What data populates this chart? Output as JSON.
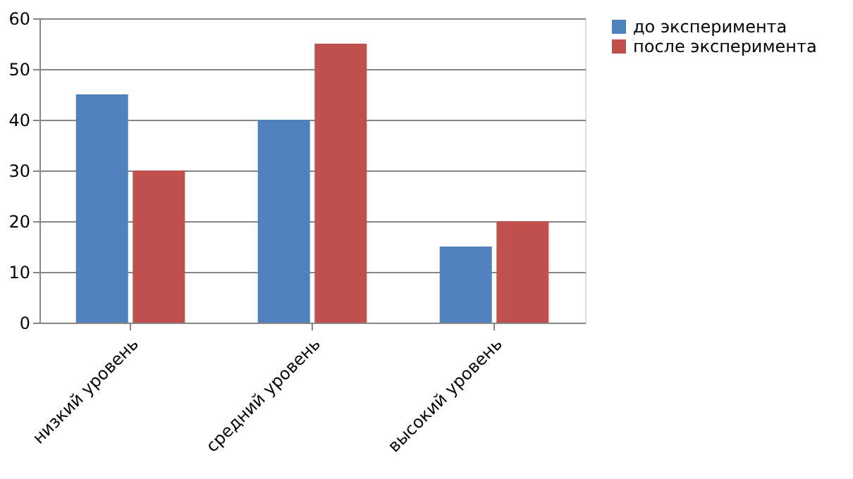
{
  "chart_data": {
    "type": "bar",
    "categories": [
      "низкий уровень",
      "средний уровень",
      "высокий уровень"
    ],
    "series": [
      {
        "name": "до эксперимента",
        "color": "#4f81bd",
        "values": [
          45,
          40,
          15
        ]
      },
      {
        "name": "после эксперимента",
        "color": "#c0504d",
        "values": [
          30,
          55,
          20
        ]
      }
    ],
    "ylim": [
      0,
      60
    ],
    "yticks": [
      0,
      10,
      20,
      30,
      40,
      50,
      60
    ],
    "grid": "y",
    "legend": "right"
  }
}
